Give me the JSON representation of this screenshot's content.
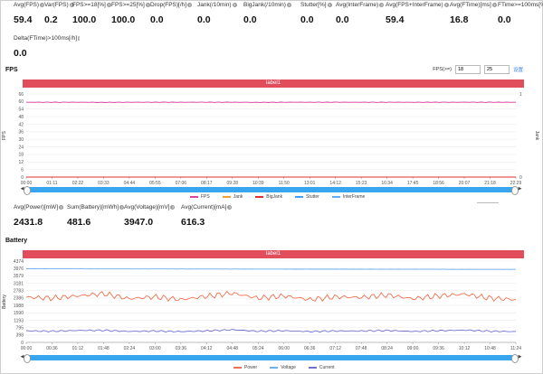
{
  "top_stats": [
    {
      "label": "Avg(FPS)",
      "value": "59.4"
    },
    {
      "label": "Var(FPS)",
      "value": "0.2"
    },
    {
      "label": "FPS>=18[%]",
      "value": "100.0"
    },
    {
      "label": "FPS>=25[%]",
      "value": "100.0"
    },
    {
      "label": "Drop(FPS)[/h]",
      "value": "0.0"
    },
    {
      "label": "Jank(/10min)",
      "value": "0.0"
    },
    {
      "label": "BigJank(/10min)",
      "value": "0.0"
    },
    {
      "label": "Stutter[%]",
      "value": "0.0"
    },
    {
      "label": "Avg(InterFrame)",
      "value": "0.0"
    },
    {
      "label": "Avg(FPS+InterFrame)",
      "value": "59.4"
    },
    {
      "label": "Avg(FTime)[ms]",
      "value": "16.8"
    },
    {
      "label": "FTime>=100ms[%]",
      "value": "0.0"
    },
    {
      "label": "Delta(FTime)>100ms[/h]",
      "value": "0.0"
    }
  ],
  "fps": {
    "title": "FPS",
    "threshold_label": "FPS(>=)",
    "threshold_1": "18",
    "threshold_2": "25",
    "threshold_link": "设置",
    "banner": "label1",
    "ylabel": "FPS",
    "y2label": "Jank",
    "yticks": [
      "66",
      "60",
      "54",
      "48",
      "42",
      "36",
      "30",
      "24",
      "18",
      "12",
      "6",
      "0"
    ],
    "y2ticks": [
      "1",
      "0"
    ],
    "xticks": [
      "00:00",
      "01:11",
      "02:22",
      "03:33",
      "04:44",
      "05:55",
      "07:06",
      "08:17",
      "09:28",
      "10:39",
      "11:50",
      "13:01",
      "14:12",
      "15:23",
      "16:34",
      "17:45",
      "18:56",
      "20:07",
      "21:18",
      "22:29"
    ],
    "legend": [
      {
        "name": "FPS",
        "color": "#e040a0"
      },
      {
        "name": "Jank",
        "color": "#f0a030"
      },
      {
        "name": "BigJank",
        "color": "#e03030"
      },
      {
        "name": "Stutter",
        "color": "#40a0ff"
      },
      {
        "name": "InterFrame",
        "color": "#60b0ff"
      }
    ]
  },
  "power_stats": [
    {
      "label": "Avg(Power)[mW]",
      "value": "2431.8"
    },
    {
      "label": "Sum(Battery)[mWh]",
      "value": "481.6"
    },
    {
      "label": "Avg(Voltage)[mV]",
      "value": "3947.0"
    },
    {
      "label": "Avg(Current)[mA]",
      "value": "616.3"
    }
  ],
  "battery": {
    "title": "Battery",
    "banner": "label1",
    "ylabel": "Battery",
    "yticks": [
      "4374",
      "3976",
      "3579",
      "3181",
      "2783",
      "2386",
      "1988",
      "1590",
      "1193",
      "795",
      "398",
      "0"
    ],
    "xticks": [
      "00:00",
      "00:36",
      "01:12",
      "01:48",
      "02:24",
      "03:00",
      "03:36",
      "04:12",
      "04:48",
      "05:24",
      "06:00",
      "06:36",
      "07:12",
      "07:48",
      "08:24",
      "09:00",
      "09:36",
      "10:12",
      "10:48",
      "11:24"
    ],
    "legend": [
      {
        "name": "Power",
        "color": "#f07050"
      },
      {
        "name": "Voltage",
        "color": "#70b0f0"
      },
      {
        "name": "Current",
        "color": "#7070d0"
      }
    ]
  },
  "chart_data": [
    {
      "type": "line",
      "title": "",
      "ylabel": "FPS",
      "ylim": [
        0,
        66
      ],
      "series": [
        {
          "name": "FPS",
          "values": [
            59.4,
            59.4,
            59.4,
            59.3,
            59.4,
            59.4,
            59.4,
            59.4,
            59.4,
            59.3,
            59.4,
            59.4,
            59.4,
            59.4,
            59.4,
            59.4,
            59.4,
            59.4,
            59.4,
            59.4
          ]
        },
        {
          "name": "Jank",
          "values": [
            0,
            0,
            0,
            0,
            0,
            0,
            0,
            0,
            0,
            0,
            0,
            0,
            0,
            0,
            0,
            0,
            0,
            0,
            0,
            0
          ]
        },
        {
          "name": "BigJank",
          "values": [
            0,
            0,
            0,
            0,
            0,
            0,
            0,
            0,
            0,
            0,
            0,
            0,
            0,
            0,
            0,
            0,
            0,
            0,
            0,
            0
          ]
        }
      ]
    },
    {
      "type": "line",
      "title": "",
      "ylabel": "Battery",
      "ylim": [
        0,
        4374
      ],
      "series": [
        {
          "name": "Power",
          "values": [
            2430,
            2380,
            2500,
            2620,
            2350,
            2450,
            2300,
            2480,
            2650,
            2380,
            2500,
            2300,
            2450,
            2420,
            2550,
            2350,
            2500,
            2600,
            2380,
            2300
          ]
        },
        {
          "name": "Voltage",
          "values": [
            3960,
            3958,
            3955,
            3952,
            3950,
            3950,
            3948,
            3946,
            3944,
            3942,
            3940,
            3938,
            3936,
            3935,
            3933,
            3932,
            3930,
            3928,
            3926,
            3925
          ]
        },
        {
          "name": "Current",
          "values": [
            620,
            600,
            640,
            650,
            590,
            610,
            580,
            620,
            680,
            600,
            630,
            580,
            615,
            612,
            640,
            590,
            630,
            660,
            600,
            580
          ]
        }
      ]
    }
  ]
}
